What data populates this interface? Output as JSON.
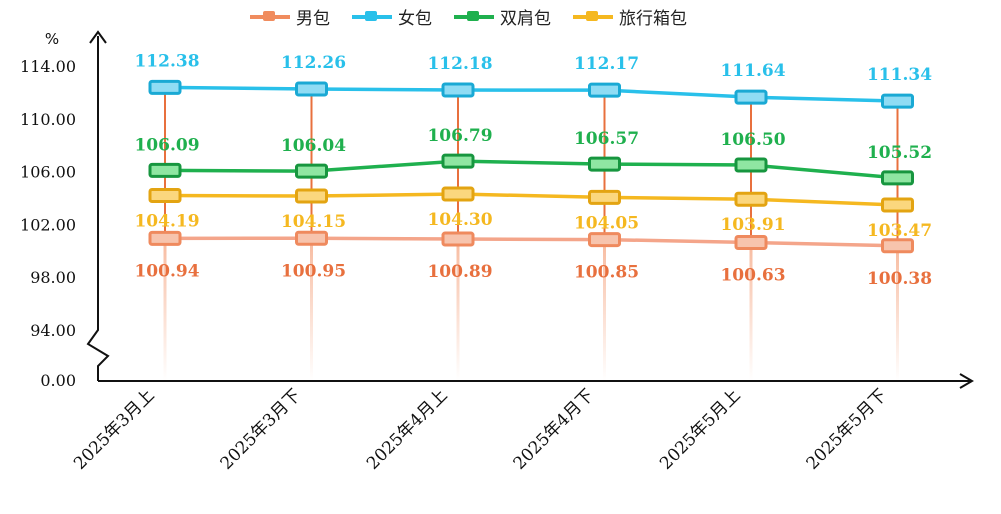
{
  "chart_data": {
    "type": "line",
    "ylabel": "%",
    "categories": [
      "2025年3月上",
      "2025年3月下",
      "2025年4月上",
      "2025年4月下",
      "2025年5月上",
      "2025年5月下"
    ],
    "y_ticks": [
      "0.00",
      "94.00",
      "98.00",
      "102.00",
      "106.00",
      "110.00",
      "114.00"
    ],
    "axis_break": [
      0,
      94
    ],
    "ylim": [
      94,
      116
    ],
    "grid": false,
    "legend": "top",
    "series": [
      {
        "name": "男包",
        "color": "#f4a58a",
        "label_color": "#e8703e",
        "values": [
          100.94,
          100.95,
          100.89,
          100.85,
          100.63,
          100.38
        ],
        "labels": [
          "100.94",
          "100.95",
          "100.89",
          "100.85",
          "100.63",
          "100.38"
        ]
      },
      {
        "name": "女包",
        "color": "#29c0ea",
        "label_color": "#29c0ea",
        "values": [
          112.38,
          112.26,
          112.18,
          112.17,
          111.64,
          111.34
        ],
        "labels": [
          "112.38",
          "112.26",
          "112.18",
          "112.17",
          "111.64",
          "111.34"
        ]
      },
      {
        "name": "双肩包",
        "color": "#1fb04e",
        "label_color": "#1fb04e",
        "values": [
          106.09,
          106.04,
          106.79,
          106.57,
          106.5,
          105.52
        ],
        "labels": [
          "106.09",
          "106.04",
          "106.79",
          "106.57",
          "106.50",
          "105.52"
        ]
      },
      {
        "name": "旅行箱包",
        "color": "#f5b820",
        "label_color": "#f5b820",
        "values": [
          104.19,
          104.15,
          104.3,
          104.05,
          103.91,
          103.47
        ],
        "labels": [
          "104.19",
          "104.15",
          "104.30",
          "104.05",
          "103.91",
          "103.47"
        ]
      }
    ]
  }
}
